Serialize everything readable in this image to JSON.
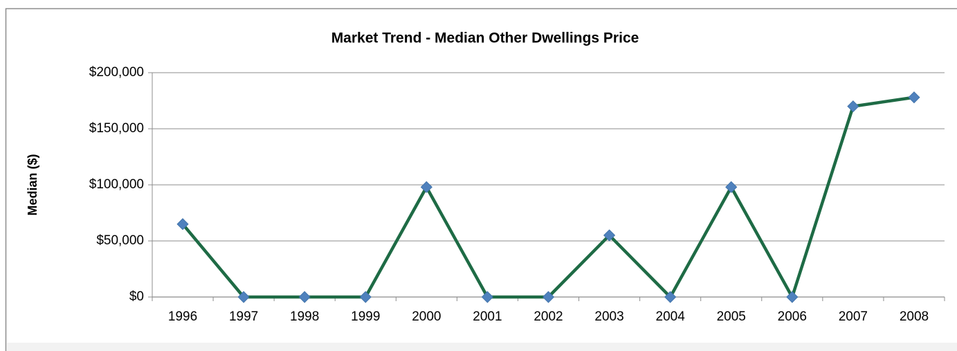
{
  "chart_data": {
    "type": "line",
    "title": "Market Trend - Median  Other Dwellings Price",
    "y_label": "Median ($)",
    "categories": [
      "1996",
      "1997",
      "1998",
      "1999",
      "2000",
      "2001",
      "2002",
      "2003",
      "2004",
      "2005",
      "2006",
      "2007",
      "2008"
    ],
    "series": [
      {
        "color": "#1e6b45",
        "marker_color": "#4f81bd",
        "values": [
          65000,
          0,
          0,
          0,
          98000,
          0,
          0,
          55000,
          0,
          98000,
          0,
          170000,
          178000
        ]
      }
    ],
    "ylim": [
      0,
      200000
    ],
    "yticks": [
      {
        "value": 0,
        "label": "$0"
      },
      {
        "value": 50000,
        "label": "$50,000"
      },
      {
        "value": 100000,
        "label": "$100,000"
      },
      {
        "value": 150000,
        "label": "$150,000"
      },
      {
        "value": 200000,
        "label": "$200,000"
      }
    ],
    "grid": true
  }
}
